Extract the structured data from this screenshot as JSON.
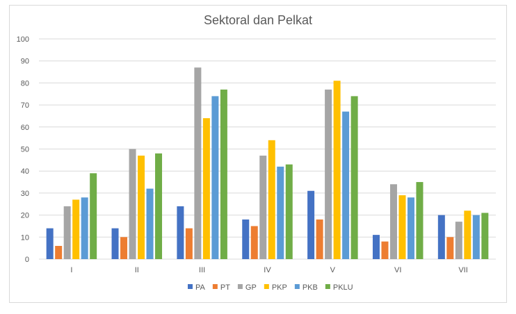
{
  "chart_data": {
    "type": "bar",
    "title": "Sektoral dan Pelkat",
    "xlabel": "",
    "ylabel": "",
    "ylim": [
      0,
      100
    ],
    "yticks": [
      0,
      10,
      20,
      30,
      40,
      50,
      60,
      70,
      80,
      90,
      100
    ],
    "grid": true,
    "legend": "bottom",
    "categories": [
      "I",
      "II",
      "III",
      "IV",
      "V",
      "VI",
      "VII"
    ],
    "series": [
      {
        "name": "PA",
        "color": "#4472C4",
        "values": [
          14,
          14,
          24,
          18,
          31,
          11,
          20
        ]
      },
      {
        "name": "PT",
        "color": "#ED7D31",
        "values": [
          6,
          10,
          14,
          15,
          18,
          8,
          10
        ]
      },
      {
        "name": "GP",
        "color": "#A5A5A5",
        "values": [
          24,
          50,
          87,
          47,
          77,
          34,
          17
        ]
      },
      {
        "name": "PKP",
        "color": "#FFC000",
        "values": [
          27,
          47,
          64,
          54,
          81,
          29,
          22
        ]
      },
      {
        "name": "PKB",
        "color": "#5B9BD5",
        "values": [
          28,
          32,
          74,
          42,
          67,
          28,
          20
        ]
      },
      {
        "name": "PKLU",
        "color": "#70AD47",
        "values": [
          39,
          48,
          77,
          43,
          74,
          35,
          21
        ]
      }
    ]
  }
}
